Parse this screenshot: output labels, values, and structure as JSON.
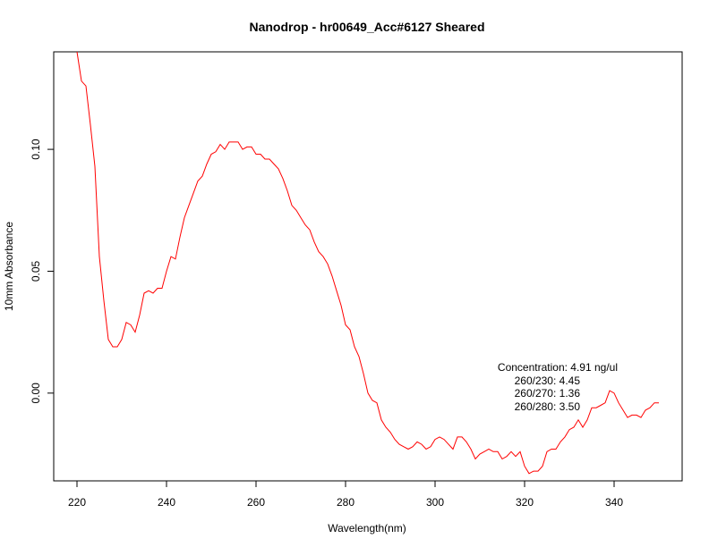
{
  "chart_data": {
    "type": "line",
    "title": "Nanodrop - hr00649_Acc#6127 Sheared",
    "xlabel": "Wavelength(nm)",
    "ylabel": "10mm Absorbance",
    "xlim": [
      220,
      350
    ],
    "ylim": [
      -0.036,
      0.14
    ],
    "x_ticks": [
      220,
      240,
      260,
      280,
      300,
      320,
      340
    ],
    "y_ticks": [
      0.0,
      0.05,
      0.1
    ],
    "x_tick_labels": [
      "220",
      "240",
      "260",
      "280",
      "300",
      "320",
      "340"
    ],
    "y_tick_labels": [
      "0.00",
      "0.05",
      "0.10"
    ],
    "grid": false,
    "line_color": "#ff0000",
    "series": [
      {
        "x": [
          220,
          221,
          222,
          223,
          224,
          225,
          226,
          227,
          228,
          229,
          230,
          231,
          232,
          233,
          234,
          235,
          236,
          237,
          238,
          239,
          240,
          241,
          242,
          243,
          244,
          245,
          246,
          247,
          248,
          249,
          250,
          251,
          252,
          253,
          254,
          255,
          256,
          257,
          258,
          259,
          260,
          261,
          262,
          263,
          264,
          265,
          266,
          267,
          268,
          269,
          270,
          271,
          272,
          273,
          274,
          275,
          276,
          277,
          278,
          279,
          280,
          281,
          282,
          283,
          284,
          285,
          286,
          287,
          288,
          289,
          290,
          291,
          292,
          293,
          294,
          295,
          296,
          297,
          298,
          299,
          300,
          301,
          302,
          303,
          304,
          305,
          306,
          307,
          308,
          309,
          310,
          311,
          312,
          313,
          314,
          315,
          316,
          317,
          318,
          319,
          320,
          321,
          322,
          323,
          324,
          325,
          326,
          327,
          328,
          329,
          330,
          331,
          332,
          333,
          334,
          335,
          336,
          337,
          338,
          339,
          340,
          341,
          342,
          343,
          344,
          345,
          346,
          347,
          348,
          349,
          350
        ],
        "y": [
          0.14,
          0.128,
          0.126,
          0.11,
          0.093,
          0.056,
          0.038,
          0.022,
          0.019,
          0.019,
          0.022,
          0.029,
          0.028,
          0.025,
          0.032,
          0.041,
          0.042,
          0.041,
          0.043,
          0.043,
          0.05,
          0.056,
          0.055,
          0.064,
          0.072,
          0.077,
          0.082,
          0.087,
          0.089,
          0.094,
          0.098,
          0.099,
          0.102,
          0.1,
          0.103,
          0.103,
          0.103,
          0.1,
          0.101,
          0.101,
          0.098,
          0.098,
          0.096,
          0.096,
          0.094,
          0.092,
          0.088,
          0.083,
          0.077,
          0.075,
          0.072,
          0.069,
          0.067,
          0.062,
          0.058,
          0.056,
          0.053,
          0.048,
          0.042,
          0.036,
          0.028,
          0.026,
          0.019,
          0.015,
          0.008,
          0.0,
          -0.003,
          -0.004,
          -0.011,
          -0.014,
          -0.016,
          -0.019,
          -0.021,
          -0.022,
          -0.023,
          -0.022,
          -0.02,
          -0.021,
          -0.023,
          -0.022,
          -0.019,
          -0.018,
          -0.019,
          -0.021,
          -0.023,
          -0.018,
          -0.018,
          -0.02,
          -0.023,
          -0.027,
          -0.025,
          -0.024,
          -0.023,
          -0.024,
          -0.024,
          -0.027,
          -0.026,
          -0.024,
          -0.026,
          -0.024,
          -0.03,
          -0.033,
          -0.032,
          -0.032,
          -0.03,
          -0.024,
          -0.023,
          -0.023,
          -0.02,
          -0.018,
          -0.015,
          -0.014,
          -0.011,
          -0.014,
          -0.011,
          -0.006,
          -0.006,
          -0.005,
          -0.004,
          0.001,
          0.0,
          -0.004,
          -0.007,
          -0.01,
          -0.009,
          -0.009,
          -0.01,
          -0.007,
          -0.006,
          -0.004,
          -0.004
        ]
      }
    ],
    "annotations": [
      "Concentration: 4.91 ng/ul",
      "260/230: 4.45",
      "260/270: 1.36",
      "260/280: 3.50"
    ]
  }
}
